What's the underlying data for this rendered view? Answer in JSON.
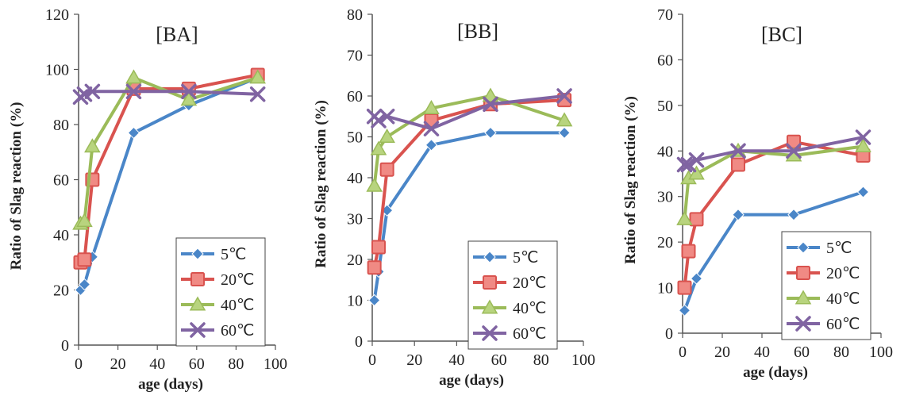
{
  "chart_data": [
    {
      "type": "line",
      "title": "[BA]",
      "xlabel": "age (days)",
      "ylabel": "Ratio of Slag reaction (%)",
      "xlim": [
        0,
        100
      ],
      "ylim": [
        0,
        120
      ],
      "x_ticks": [
        0,
        20,
        40,
        60,
        80,
        100
      ],
      "y_ticks": [
        0,
        20,
        40,
        60,
        80,
        100,
        120
      ],
      "legend_position": "bottom-right",
      "grid": false,
      "series": [
        {
          "name": "5℃",
          "color": "#4a86c8",
          "marker": "diamond",
          "x": [
            1,
            3,
            7,
            28,
            56,
            91
          ],
          "y": [
            20,
            22,
            32,
            77,
            87,
            97
          ]
        },
        {
          "name": "20℃",
          "color": "#d9534f",
          "marker": "square",
          "x": [
            1,
            3,
            7,
            28,
            56,
            91
          ],
          "y": [
            30,
            31,
            60,
            93,
            93,
            98
          ]
        },
        {
          "name": "40℃",
          "color": "#9bbb59",
          "marker": "triangle",
          "x": [
            1,
            3,
            7,
            28,
            56,
            91
          ],
          "y": [
            44,
            45,
            72,
            97,
            89,
            97
          ]
        },
        {
          "name": "60℃",
          "color": "#8064a2",
          "marker": "x",
          "x": [
            1,
            3,
            7,
            28,
            56,
            91
          ],
          "y": [
            90,
            91,
            92,
            92,
            92,
            91
          ]
        }
      ]
    },
    {
      "type": "line",
      "title": "[BB]",
      "xlabel": "age (days)",
      "ylabel": "Ratio of Slag reaction (%)",
      "xlim": [
        0,
        100
      ],
      "ylim": [
        0,
        80
      ],
      "x_ticks": [
        0,
        20,
        40,
        60,
        80,
        100
      ],
      "y_ticks": [
        0,
        10,
        20,
        30,
        40,
        50,
        60,
        70,
        80
      ],
      "legend_position": "bottom-right",
      "grid": false,
      "series": [
        {
          "name": "5℃",
          "color": "#4a86c8",
          "marker": "diamond",
          "x": [
            1,
            3,
            7,
            28,
            56,
            91
          ],
          "y": [
            10,
            17,
            32,
            48,
            51,
            51
          ]
        },
        {
          "name": "20℃",
          "color": "#d9534f",
          "marker": "square",
          "x": [
            1,
            3,
            7,
            28,
            56,
            91
          ],
          "y": [
            18,
            23,
            42,
            54,
            58,
            59
          ]
        },
        {
          "name": "40℃",
          "color": "#9bbb59",
          "marker": "triangle",
          "x": [
            1,
            3,
            7,
            28,
            56,
            91
          ],
          "y": [
            38,
            47,
            50,
            57,
            60,
            54
          ]
        },
        {
          "name": "60℃",
          "color": "#8064a2",
          "marker": "x",
          "x": [
            1,
            3,
            7,
            28,
            56,
            91
          ],
          "y": [
            55,
            54,
            55,
            52,
            58,
            60
          ]
        }
      ]
    },
    {
      "type": "line",
      "title": "[BC]",
      "xlabel": "age (days)",
      "ylabel": "Ratio of Slag reaction (%)",
      "xlim": [
        0,
        100
      ],
      "ylim": [
        0,
        70
      ],
      "x_ticks": [
        0,
        20,
        40,
        60,
        80,
        100
      ],
      "y_ticks": [
        0,
        10,
        20,
        30,
        40,
        50,
        60,
        70
      ],
      "legend_position": "bottom-right",
      "grid": false,
      "series": [
        {
          "name": "5℃",
          "color": "#4a86c8",
          "marker": "diamond",
          "x": [
            1,
            7,
            28,
            56,
            91
          ],
          "y": [
            5,
            12,
            26,
            26,
            31
          ]
        },
        {
          "name": "20℃",
          "color": "#d9534f",
          "marker": "square",
          "x": [
            1,
            3,
            7,
            28,
            56,
            91
          ],
          "y": [
            10,
            18,
            25,
            37,
            42,
            39
          ]
        },
        {
          "name": "40℃",
          "color": "#9bbb59",
          "marker": "triangle",
          "x": [
            1,
            3,
            7,
            28,
            56,
            91
          ],
          "y": [
            25,
            34,
            35,
            40,
            39,
            41
          ]
        },
        {
          "name": "60℃",
          "color": "#8064a2",
          "marker": "x",
          "x": [
            1,
            3,
            7,
            28,
            56,
            91
          ],
          "y": [
            37,
            37,
            38,
            40,
            40,
            43
          ]
        }
      ]
    }
  ]
}
